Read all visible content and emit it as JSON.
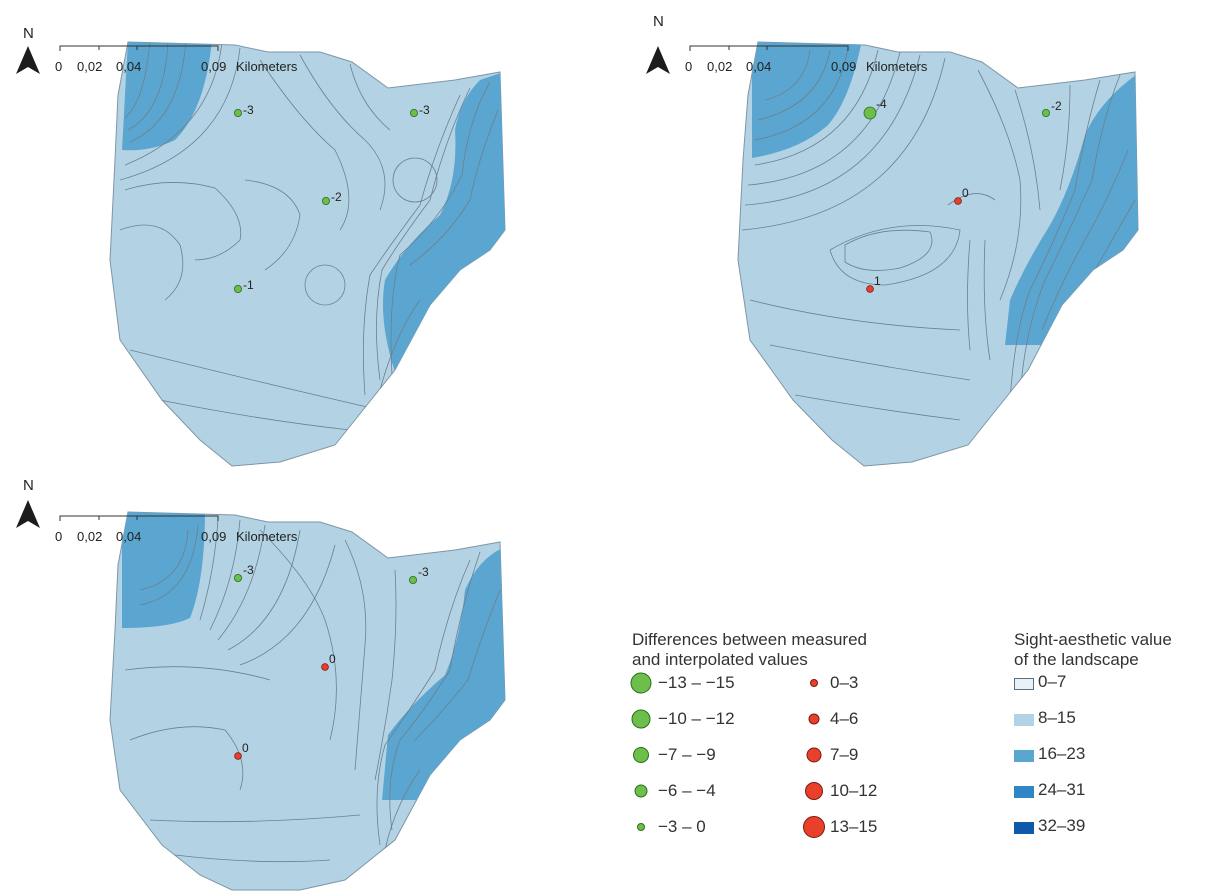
{
  "scale_bar": {
    "ticks": [
      "0",
      "0,02",
      "0,04",
      "0,09"
    ],
    "unit": "Kilometers"
  },
  "north_label": "N",
  "maps": [
    {
      "points": [
        {
          "label": "-3",
          "kind": "negative",
          "size_class": "-3 – 0"
        },
        {
          "label": "-3",
          "kind": "negative",
          "size_class": "-3 – 0"
        },
        {
          "label": "-2",
          "kind": "negative",
          "size_class": "-3 – 0"
        },
        {
          "label": "-1",
          "kind": "negative",
          "size_class": "-3 – 0"
        }
      ]
    },
    {
      "points": [
        {
          "label": "-4",
          "kind": "negative",
          "size_class": "-6 – -4"
        },
        {
          "label": "-2",
          "kind": "negative",
          "size_class": "-3 – 0"
        },
        {
          "label": "0",
          "kind": "positive",
          "size_class": "0–3"
        },
        {
          "label": "1",
          "kind": "positive",
          "size_class": "0–3"
        }
      ]
    },
    {
      "points": [
        {
          "label": "-3",
          "kind": "negative",
          "size_class": "-3 – 0"
        },
        {
          "label": "-3",
          "kind": "negative",
          "size_class": "-3 – 0"
        },
        {
          "label": "0",
          "kind": "positive",
          "size_class": "0–3"
        },
        {
          "label": "0",
          "kind": "positive",
          "size_class": "0–3"
        }
      ]
    }
  ],
  "legend_differences": {
    "title_line1": "Differences between measured",
    "title_line2": "and interpolated values",
    "negative": [
      "−13 – −15",
      "−10 – −12",
      "−7 – −9",
      "−6 – −4",
      "−3 – 0"
    ],
    "positive": [
      "0–3",
      "4–6",
      "7–9",
      "10–12",
      "13–15"
    ],
    "negative_color": "#6cbf4a",
    "positive_color": "#e8402a"
  },
  "legend_value": {
    "title_line1": "Sight-aesthetic value",
    "title_line2": "of the landscape",
    "classes": [
      {
        "label": "0–7",
        "color": "#e9f1f8"
      },
      {
        "label": "8–15",
        "color": "#b3d3e5"
      },
      {
        "label": "16–23",
        "color": "#5ba6d0"
      },
      {
        "label": "24–31",
        "color": "#2f86c4"
      },
      {
        "label": "32–39",
        "color": "#0e5aa8"
      }
    ]
  }
}
